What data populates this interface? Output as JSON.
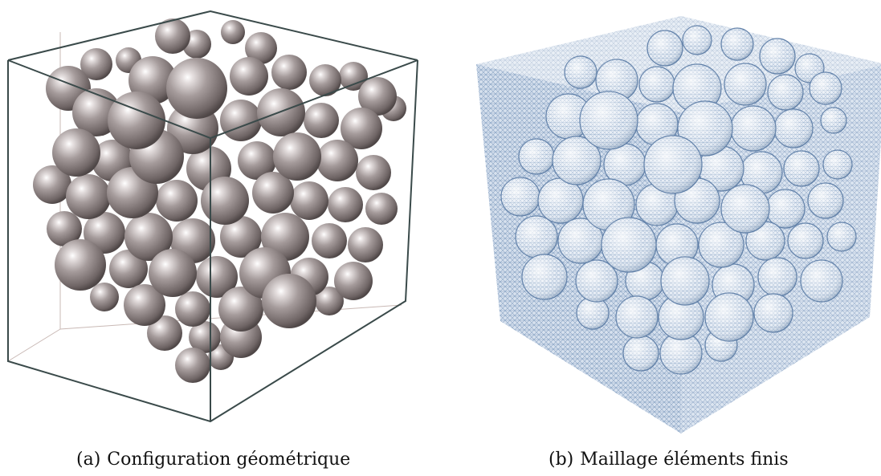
{
  "figure": {
    "panels": [
      {
        "id": "a",
        "label": "(a)",
        "caption": "Configuration géométrique",
        "sphere_color": "#8f8585",
        "frame_color": "#3a4a4a",
        "icon": "sphere-packing-geometry-icon"
      },
      {
        "id": "b",
        "label": "(b)",
        "caption": "Maillage éléments finis",
        "mesh_color": "#6f8fb5",
        "icon": "finite-element-mesh-icon"
      }
    ]
  }
}
